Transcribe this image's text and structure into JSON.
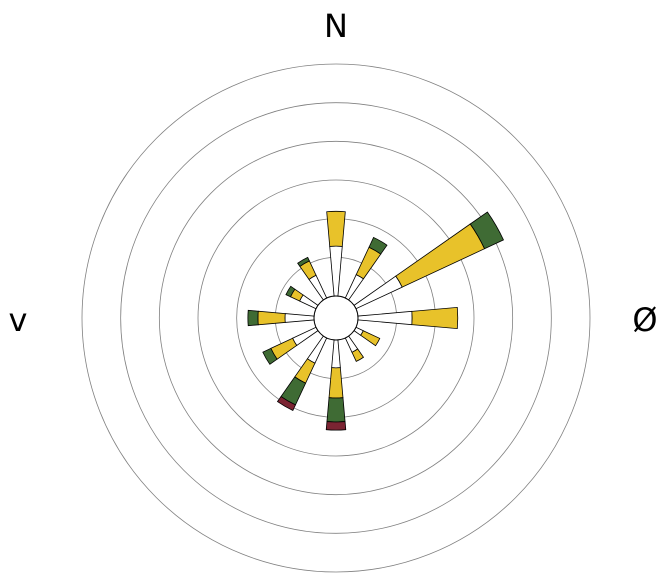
{
  "chart_data": {
    "type": "windrose",
    "annotations": [
      "N",
      "Ø",
      "v"
    ],
    "x": [
      0,
      30,
      60,
      90,
      120,
      150,
      180,
      210,
      240,
      270,
      300,
      330
    ],
    "series": [
      {
        "color": "#ffffff",
        "values": [
          1.29,
          0.67,
          1.32,
          1.4,
          0.21,
          0.41,
          0.72,
          0.72,
          0.67,
          0.75,
          0.47,
          0.65
        ]
      },
      {
        "color": "#e8c22a",
        "values": [
          0.9,
          0.78,
          2.35,
          1.18,
          0.47,
          0.26,
          0.78,
          0.57,
          0.62,
          0.7,
          0.26,
          0.41
        ]
      },
      {
        "color": "#3f6b34",
        "values": [
          0,
          0.28,
          0.54,
          0,
          0,
          0,
          0.62,
          0.62,
          0.23,
          0.26,
          0.13,
          0.1
        ]
      },
      {
        "color": "#7b2432",
        "values": [
          0,
          0,
          0,
          0,
          0,
          0,
          0.21,
          0.16,
          0,
          0,
          0,
          0
        ]
      }
    ],
    "ylim": [
      0,
      6
    ],
    "yticks": [
      1,
      2,
      3,
      4,
      5,
      6
    ],
    "grid": true
  }
}
